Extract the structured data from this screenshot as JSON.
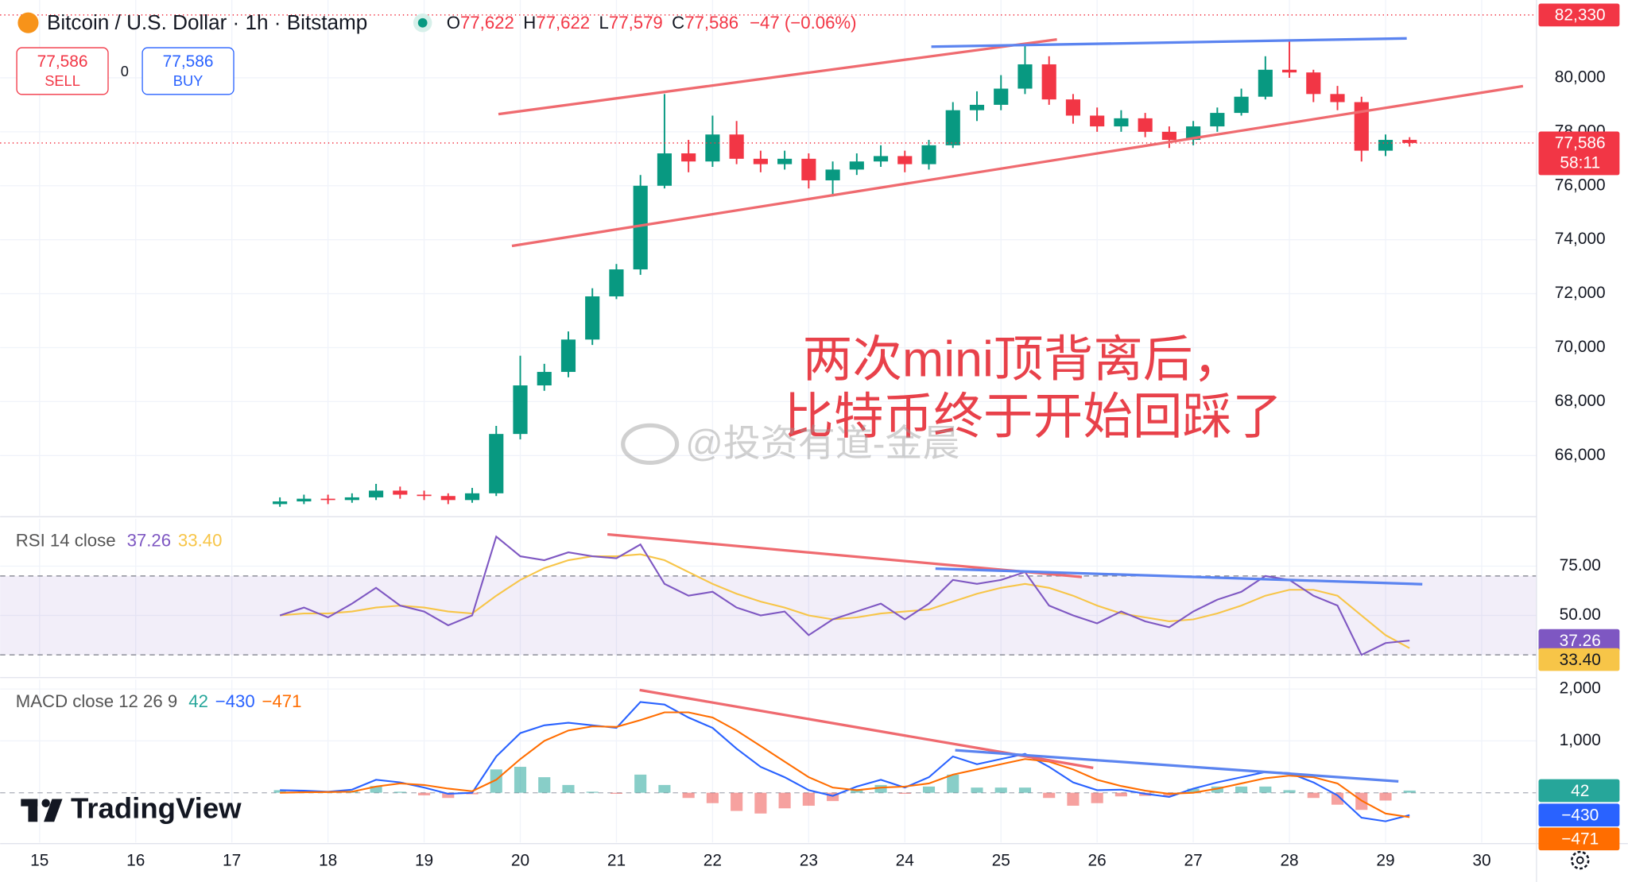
{
  "chart_data": [
    {
      "type": "candlestick",
      "title": "Bitcoin / U.S. Dollar · 1h · Bitstamp",
      "ohlc": [
        [
          "O",
          "77,622"
        ],
        [
          "H",
          "77,622"
        ],
        [
          "L",
          "77,579"
        ],
        [
          "C",
          "77,586"
        ]
      ],
      "change": "−47 (−0.06%)",
      "sell": {
        "price": "77,586",
        "label": "SELL"
      },
      "spread": "0",
      "buy": {
        "price": "77,586",
        "label": "BUY"
      },
      "annotation": [
        "两次mini顶背离后，",
        "比特币终于开始回踩了"
      ],
      "watermark": "@投资有道-金晨",
      "brand": "TradingView",
      "up_color": "#089981",
      "down_color": "#f23645",
      "x": [
        17.5,
        17.75,
        18,
        18.25,
        18.5,
        18.75,
        19,
        19.25,
        19.5,
        19.75,
        20,
        20.25,
        20.5,
        20.75,
        21,
        21.25,
        21.5,
        21.75,
        22,
        22.25,
        22.5,
        22.75,
        23,
        23.25,
        23.5,
        23.75,
        24,
        24.25,
        24.5,
        24.75,
        25,
        25.25,
        25.5,
        25.75,
        26,
        26.25,
        26.5,
        26.75,
        27,
        27.25,
        27.5,
        27.75,
        28,
        28.25,
        28.5,
        28.75,
        29,
        29.25
      ],
      "open": [
        64200,
        64300,
        64400,
        64350,
        64450,
        64700,
        64550,
        64500,
        64350,
        64600,
        66800,
        68600,
        69100,
        70300,
        71900,
        72900,
        76000,
        77200,
        76900,
        77900,
        77000,
        76800,
        77000,
        76200,
        76600,
        76900,
        77100,
        76800,
        77500,
        78800,
        79000,
        79600,
        80500,
        79200,
        78600,
        78200,
        78500,
        78000,
        77700,
        78200,
        78700,
        79300,
        80300,
        80200,
        79400,
        79100,
        77300,
        77700
      ],
      "high": [
        64450,
        64550,
        64550,
        64600,
        64950,
        64850,
        64700,
        64600,
        64800,
        67100,
        69700,
        69400,
        70600,
        72200,
        73100,
        76400,
        79400,
        77700,
        78600,
        78400,
        77300,
        77300,
        77200,
        76900,
        77200,
        77500,
        77300,
        77700,
        79100,
        79500,
        80100,
        81300,
        80800,
        79400,
        78900,
        78800,
        78700,
        78200,
        78400,
        78900,
        79600,
        80800,
        81400,
        80300,
        79700,
        79300,
        77900,
        77800
      ],
      "low": [
        64100,
        64200,
        64200,
        64250,
        64350,
        64400,
        64350,
        64200,
        64250,
        64500,
        66600,
        68400,
        68900,
        70100,
        71800,
        72700,
        75900,
        76500,
        76700,
        76800,
        76500,
        76600,
        75900,
        75600,
        76400,
        76700,
        76500,
        76600,
        77400,
        78400,
        78800,
        79400,
        79000,
        78300,
        78000,
        78000,
        77800,
        77400,
        77500,
        78000,
        78600,
        79200,
        80000,
        79100,
        78800,
        76900,
        77100,
        77450
      ],
      "close": [
        64300,
        64400,
        64350,
        64450,
        64700,
        64550,
        64500,
        64350,
        64600,
        66800,
        68600,
        69100,
        70300,
        71900,
        72900,
        76000,
        77200,
        76900,
        77900,
        77000,
        76800,
        77000,
        76200,
        76600,
        76900,
        77100,
        76800,
        77500,
        78800,
        79000,
        79600,
        80500,
        79200,
        78600,
        78200,
        78500,
        78000,
        77700,
        78200,
        78700,
        79300,
        80300,
        80200,
        79400,
        79100,
        77300,
        77700,
        77586
      ],
      "xlim": [
        14.59,
        30.57
      ],
      "xticks": [
        15,
        16,
        17,
        18,
        19,
        20,
        21,
        22,
        23,
        24,
        25,
        26,
        27,
        28,
        29,
        30
      ],
      "ylim": [
        63770,
        82885
      ],
      "yticks": [
        {
          "value": 66000,
          "label": "66,000"
        },
        {
          "value": 68000,
          "label": "68,000"
        },
        {
          "value": 70000,
          "label": "70,000"
        },
        {
          "value": 72000,
          "label": "72,000"
        },
        {
          "value": 74000,
          "label": "74,000"
        },
        {
          "value": 76000,
          "label": "76,000"
        },
        {
          "value": 78000,
          "label": "78,000"
        },
        {
          "value": 80000,
          "label": "80,000"
        }
      ],
      "price_labels": [
        {
          "value": 82330,
          "label": "82,330"
        },
        {
          "value": 77586,
          "label": "77,586"
        }
      ],
      "countdown": "58:11",
      "grid": true
    },
    {
      "type": "line",
      "title": "RSI 14 close",
      "legend_values": [
        "37.26",
        "33.40"
      ],
      "x": [
        17.5,
        17.75,
        18,
        18.25,
        18.5,
        18.75,
        19,
        19.25,
        19.5,
        19.75,
        20,
        20.25,
        20.5,
        20.75,
        21,
        21.25,
        21.5,
        21.75,
        22,
        22.25,
        22.5,
        22.75,
        23,
        23.25,
        23.5,
        23.75,
        24,
        24.25,
        24.5,
        24.75,
        25,
        25.25,
        25.5,
        25.75,
        26,
        26.25,
        26.5,
        26.75,
        27,
        27.25,
        27.5,
        27.75,
        28,
        28.25,
        28.5,
        28.75,
        29,
        29.25
      ],
      "series": [
        {
          "name": "RSI",
          "color": "#7e57c2",
          "values": [
            50,
            54,
            49,
            56,
            64,
            55,
            52,
            45,
            50,
            90,
            80,
            78,
            82,
            80,
            79,
            86,
            66,
            60,
            62,
            54,
            50,
            52,
            40,
            48,
            52,
            56,
            48,
            56,
            68,
            66,
            68,
            72,
            55,
            50,
            46,
            52,
            47,
            44,
            52,
            58,
            62,
            70,
            68,
            60,
            55,
            30,
            36,
            37.26
          ]
        },
        {
          "name": "MA",
          "color": "#f7c548",
          "values": [
            50,
            51,
            51,
            52,
            54,
            55,
            54,
            52,
            51,
            60,
            68,
            74,
            78,
            80,
            80,
            81,
            78,
            72,
            66,
            61,
            57,
            54,
            50,
            48,
            49,
            51,
            52,
            53,
            57,
            61,
            64,
            66,
            64,
            60,
            55,
            51,
            49,
            47,
            48,
            51,
            55,
            60,
            63,
            63,
            60,
            50,
            40,
            33.4
          ]
        }
      ],
      "xlim": [
        14.59,
        30.57
      ],
      "ylim": [
        19,
        99
      ],
      "yticks": [
        {
          "value": 75,
          "label": "75.00"
        },
        {
          "value": 50,
          "label": "50.00"
        }
      ],
      "band": [
        30,
        70
      ],
      "grid": true
    },
    {
      "type": "macd",
      "title": "MACD close 12 26 9",
      "legend_values": [
        "42",
        "−430",
        "−471"
      ],
      "x": [
        17.5,
        17.75,
        18,
        18.25,
        18.5,
        18.75,
        19,
        19.25,
        19.5,
        19.75,
        20,
        20.25,
        20.5,
        20.75,
        21,
        21.25,
        21.5,
        21.75,
        22,
        22.25,
        22.5,
        22.75,
        23,
        23.25,
        23.5,
        23.75,
        24,
        24.25,
        24.5,
        24.75,
        25,
        25.25,
        25.5,
        25.75,
        26,
        26.25,
        26.5,
        26.75,
        27,
        27.25,
        27.5,
        27.75,
        28,
        28.25,
        28.5,
        28.75,
        29,
        29.25
      ],
      "histogram": [
        50,
        30,
        5,
        40,
        130,
        20,
        -50,
        -100,
        -30,
        450,
        500,
        300,
        150,
        20,
        -20,
        350,
        150,
        -100,
        -200,
        -350,
        -400,
        -300,
        -250,
        -160,
        70,
        150,
        -20,
        120,
        350,
        100,
        100,
        100,
        -100,
        -250,
        -200,
        -70,
        -60,
        -60,
        80,
        120,
        120,
        120,
        50,
        -100,
        -230,
        -330,
        -150,
        42
      ],
      "hist_colors": [
        "#26a69a",
        "#ef5350"
      ],
      "series": [
        {
          "name": "MACD",
          "color": "#2962ff",
          "values": [
            50,
            40,
            20,
            60,
            250,
            200,
            100,
            -20,
            0,
            700,
            1150,
            1300,
            1350,
            1300,
            1250,
            1750,
            1700,
            1450,
            1250,
            850,
            500,
            300,
            50,
            -60,
            120,
            250,
            100,
            300,
            700,
            550,
            650,
            750,
            500,
            200,
            50,
            60,
            -20,
            -80,
            80,
            200,
            300,
            400,
            380,
            200,
            -50,
            -480,
            -550,
            -430
          ]
        },
        {
          "name": "Signal",
          "color": "#ff6d00",
          "values": [
            0,
            10,
            15,
            20,
            120,
            180,
            150,
            80,
            30,
            250,
            650,
            1000,
            1200,
            1280,
            1270,
            1400,
            1550,
            1550,
            1450,
            1200,
            900,
            600,
            300,
            100,
            50,
            100,
            120,
            180,
            350,
            450,
            550,
            650,
            600,
            450,
            250,
            130,
            40,
            -20,
            0,
            80,
            180,
            280,
            330,
            300,
            180,
            -150,
            -400,
            -471
          ]
        }
      ],
      "xlim": [
        14.59,
        30.57
      ],
      "ylim": [
        -960,
        2180
      ],
      "yticks": [
        {
          "value": 2000,
          "label": "2,000"
        },
        {
          "value": 1000,
          "label": "1,000"
        }
      ],
      "grid": true
    }
  ]
}
